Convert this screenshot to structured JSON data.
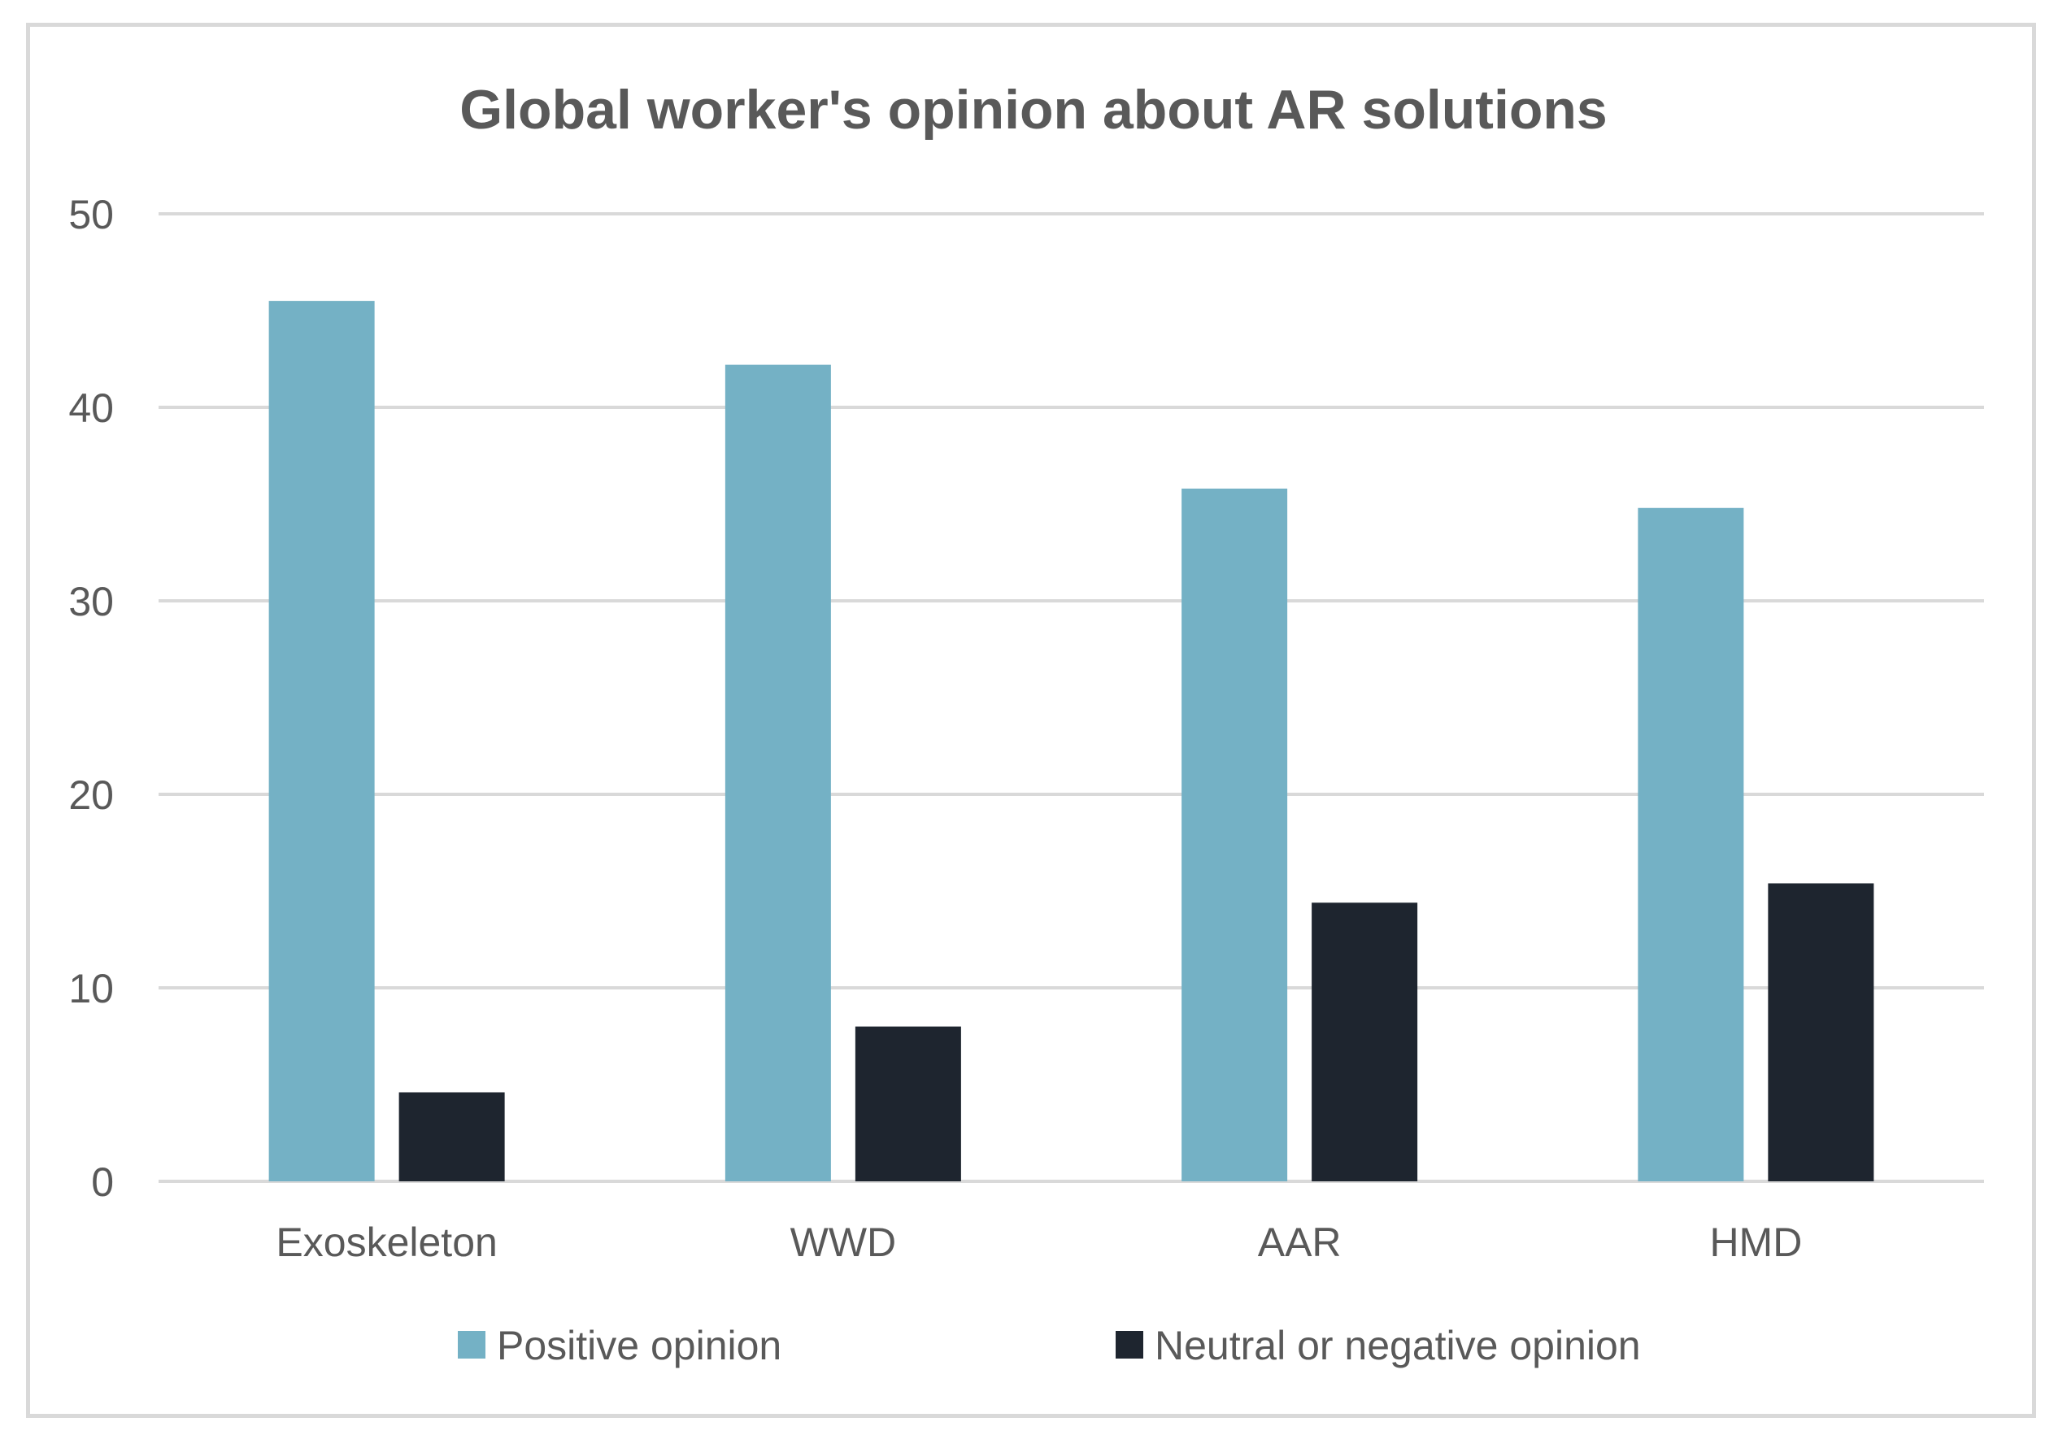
{
  "chart_data": {
    "type": "bar",
    "title": "Global worker's opinion about AR solutions",
    "xlabel": "",
    "ylabel": "",
    "categories": [
      "Exoskeleton",
      "WWD",
      "AAR",
      "HMD"
    ],
    "series": [
      {
        "name": "Positive opinion",
        "color": "#74b1c5",
        "values": [
          45.5,
          42.2,
          35.8,
          34.8
        ]
      },
      {
        "name": "Neutral or negative opinion",
        "color": "#1e252f",
        "values": [
          4.6,
          8.0,
          14.4,
          15.4
        ]
      }
    ],
    "ylim": [
      0,
      50
    ],
    "yticks": [
      "0",
      "10",
      "20",
      "30",
      "40",
      "50"
    ],
    "grid": true,
    "legend_position": "bottom"
  },
  "colors": {
    "title": "#595959",
    "axis_text": "#595959",
    "gridline": "#d9d9d9",
    "frame": "#d9d9d9"
  }
}
